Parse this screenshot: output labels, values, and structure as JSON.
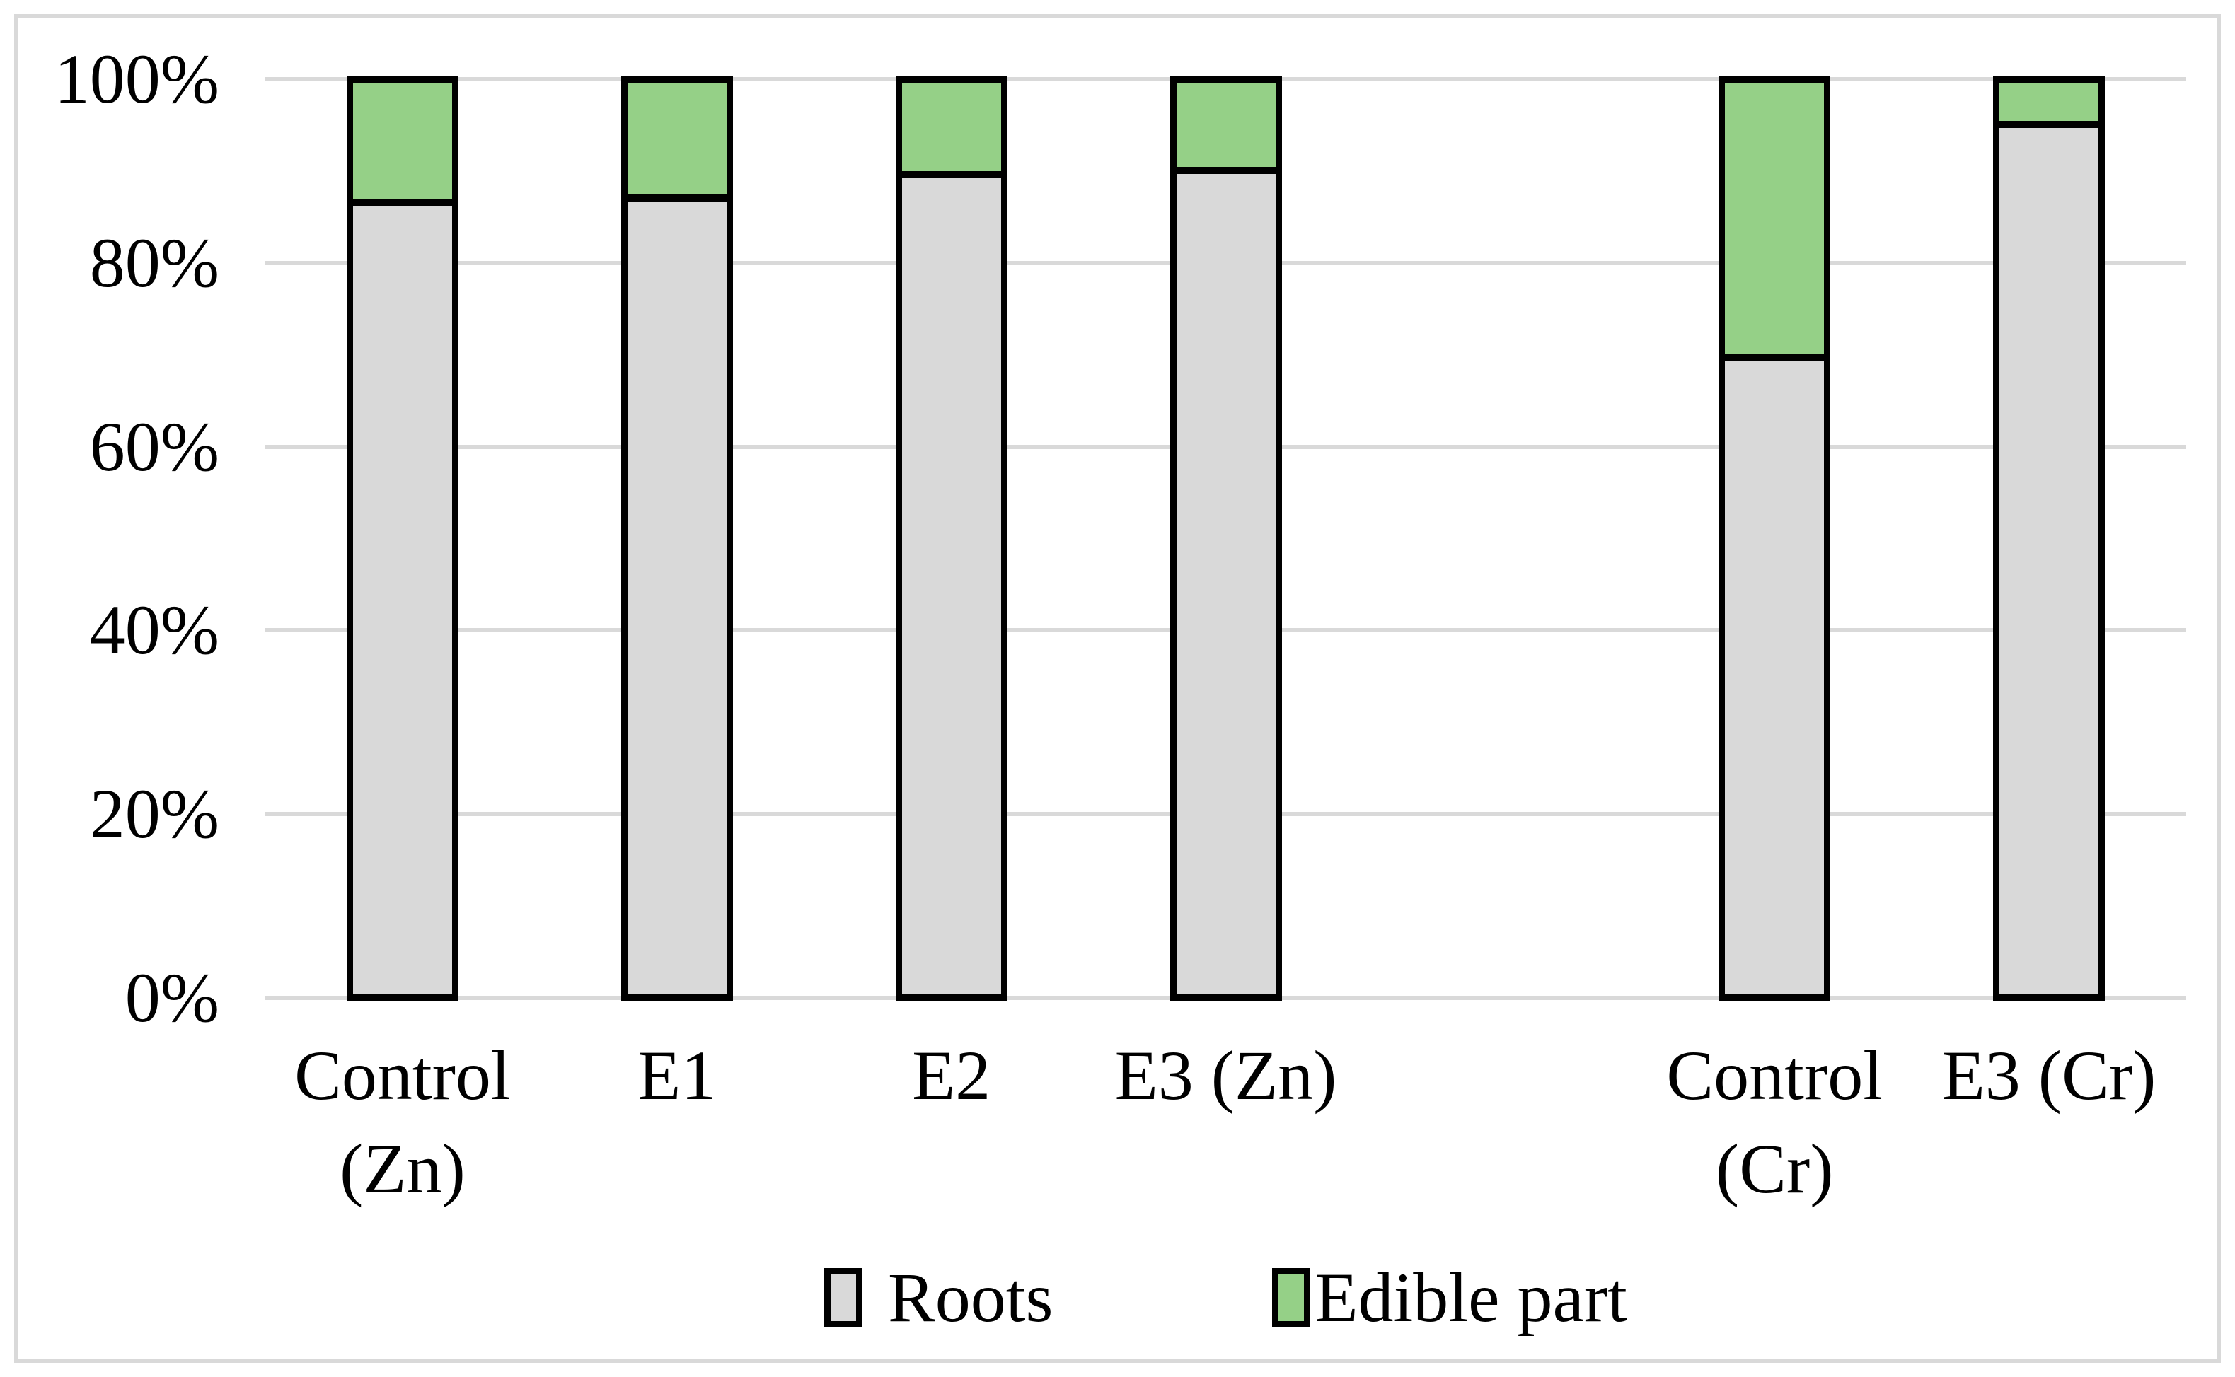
{
  "chart_data": {
    "type": "bar",
    "subtype": "stacked-100-percent-column",
    "title": "",
    "xlabel": "",
    "ylabel": "",
    "ylim": [
      0,
      100
    ],
    "grid": true,
    "legend_position": "bottom",
    "categories": [
      "Control (Zn)",
      "E1",
      "E2",
      "E3 (Zn)",
      "Control (Cr)",
      "E3 (Cr)"
    ],
    "category_label_lines": [
      [
        "Control",
        "(Zn)"
      ],
      [
        "E1"
      ],
      [
        "E2"
      ],
      [
        "E3 (Zn)"
      ],
      [
        "Control",
        "(Cr)"
      ],
      [
        "E3 (Cr)"
      ]
    ],
    "series": [
      {
        "name": "Roots",
        "color": "#d9d9d9",
        "values": [
          86.5,
          87.0,
          89.5,
          90.0,
          69.5,
          95.0
        ]
      },
      {
        "name": "Edible part",
        "color": "#95d087",
        "values": [
          13.5,
          13.0,
          10.5,
          10.0,
          30.5,
          5.0
        ]
      }
    ],
    "yticks": [
      {
        "label": "0%",
        "value": 0
      },
      {
        "label": "20%",
        "value": 20
      },
      {
        "label": "40%",
        "value": 40
      },
      {
        "label": "60%",
        "value": 60
      },
      {
        "label": "80%",
        "value": 80
      },
      {
        "label": "100%",
        "value": 100
      }
    ],
    "num_slots": 7,
    "slot_of_category": [
      0,
      1,
      2,
      3,
      5,
      6
    ]
  },
  "legend": {
    "items": [
      {
        "label": "Roots",
        "color": "#d9d9d9",
        "text_gap": 36
      },
      {
        "label": "Edible part",
        "color": "#95d087",
        "text_gap": 6
      }
    ],
    "item_gap": 310
  },
  "colors": {
    "background": "#ffffff",
    "frame_border": "#d9d9d9",
    "gridline": "#d9d9d9",
    "bar_border": "#000000",
    "text": "#000000"
  }
}
